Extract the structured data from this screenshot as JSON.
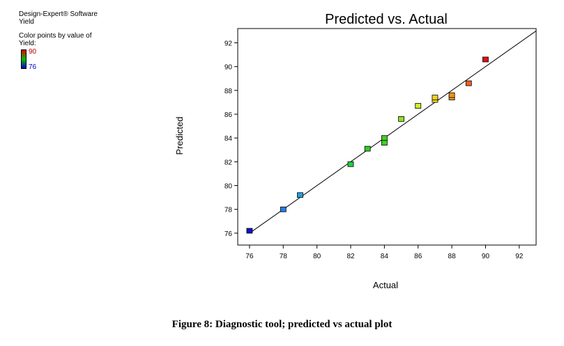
{
  "info": {
    "software": "Design-Expert® Software",
    "response": "Yield",
    "color_note": "Color points by value of",
    "color_var": "Yield:",
    "legend_max": "90",
    "legend_min": "76",
    "legend_colors": {
      "high": "#e00000",
      "mid": "#00c000",
      "low": "#0000cc"
    }
  },
  "chart_data": {
    "type": "scatter",
    "title": "Predicted vs. Actual",
    "xlabel": "Actual",
    "ylabel": "Predicted",
    "xlim": [
      75.3,
      93.0
    ],
    "ylim": [
      75.0,
      93.2
    ],
    "xticks": [
      76,
      78,
      80,
      82,
      84,
      86,
      88,
      90,
      92
    ],
    "yticks": [
      76,
      78,
      80,
      82,
      84,
      86,
      88,
      90,
      92
    ],
    "grid": false,
    "reference_line": {
      "from": [
        76,
        76
      ],
      "to": [
        93,
        93
      ]
    },
    "points": [
      {
        "x": 76,
        "y": 76.2,
        "color": "#1010cc"
      },
      {
        "x": 78,
        "y": 78.0,
        "color": "#2080e0"
      },
      {
        "x": 79,
        "y": 79.2,
        "color": "#20a0e0"
      },
      {
        "x": 82,
        "y": 81.8,
        "color": "#20d040"
      },
      {
        "x": 83,
        "y": 83.1,
        "color": "#30d020"
      },
      {
        "x": 84,
        "y": 83.6,
        "color": "#40d020"
      },
      {
        "x": 84,
        "y": 84.0,
        "color": "#40d020"
      },
      {
        "x": 85,
        "y": 85.6,
        "color": "#90e020"
      },
      {
        "x": 86,
        "y": 86.7,
        "color": "#d0f020"
      },
      {
        "x": 87,
        "y": 87.2,
        "color": "#f0e020"
      },
      {
        "x": 87,
        "y": 87.4,
        "color": "#f0d020"
      },
      {
        "x": 88,
        "y": 87.4,
        "color": "#f0a020"
      },
      {
        "x": 88,
        "y": 87.6,
        "color": "#f09020"
      },
      {
        "x": 89,
        "y": 88.6,
        "color": "#f06020"
      },
      {
        "x": 90,
        "y": 90.6,
        "color": "#e01010"
      }
    ]
  },
  "caption": "Figure 8: Diagnostic tool; predicted vs actual plot"
}
